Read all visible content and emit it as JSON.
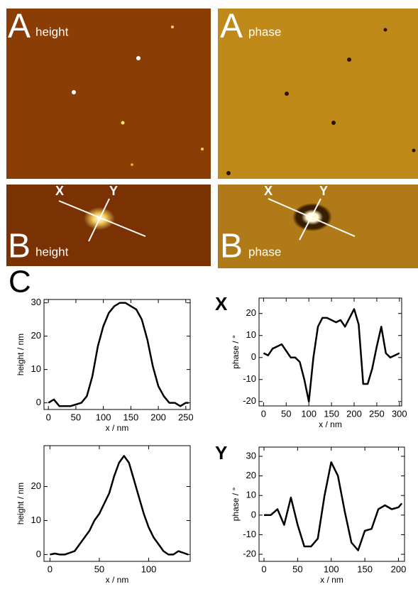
{
  "panels": {
    "a_letter": "A",
    "b_letter": "B",
    "c_letter": "C",
    "height": "height",
    "phase": "phase",
    "x_marker": "X",
    "y_marker": "Y"
  },
  "chart_data": [
    {
      "type": "line",
      "xlabel": "x / nm",
      "ylabel": "height / nm",
      "x": [
        0,
        10,
        20,
        30,
        40,
        50,
        60,
        70,
        80,
        90,
        100,
        110,
        120,
        130,
        140,
        150,
        160,
        170,
        180,
        190,
        200,
        210,
        220,
        230,
        240,
        250,
        255
      ],
      "series": [
        {
          "color": "#000000",
          "values": [
            0,
            1,
            -1,
            -1,
            -1,
            -0.5,
            0,
            2,
            8,
            17,
            23,
            27,
            29,
            30,
            30,
            29,
            28,
            25,
            19,
            11,
            5,
            2,
            0,
            0,
            -1,
            0,
            0
          ]
        }
      ],
      "xlim": [
        -8,
        258
      ],
      "ylim": [
        -2,
        31
      ],
      "xticks": [
        0,
        50,
        100,
        150,
        200,
        250
      ],
      "yticks": [
        0,
        10,
        20,
        30
      ]
    },
    {
      "type": "line",
      "xlabel": "x / nm",
      "ylabel": "phase / °",
      "title": "X",
      "x": [
        0,
        10,
        20,
        30,
        40,
        50,
        60,
        70,
        80,
        90,
        100,
        110,
        120,
        130,
        140,
        150,
        160,
        170,
        180,
        190,
        200,
        210,
        220,
        230,
        240,
        250,
        260,
        270,
        280,
        290,
        300
      ],
      "series": [
        {
          "color": "#000000",
          "values": [
            2,
            1,
            4,
            5,
            6,
            3,
            0,
            0,
            -2,
            -10,
            -20,
            0,
            14,
            18,
            18,
            17,
            16,
            17,
            14,
            18,
            22,
            15,
            -12,
            -12,
            -5,
            5,
            14,
            2,
            0,
            1,
            2
          ]
        }
      ],
      "xlim": [
        -10,
        305
      ],
      "ylim": [
        -22,
        27
      ],
      "xticks": [
        0,
        50,
        100,
        150,
        200,
        250,
        300
      ],
      "yticks": [
        -20,
        -10,
        0,
        10,
        20
      ]
    },
    {
      "type": "line",
      "xlabel": "x / nm",
      "ylabel": "height / nm",
      "x": [
        0,
        5,
        10,
        15,
        20,
        25,
        30,
        35,
        40,
        45,
        50,
        55,
        60,
        65,
        70,
        75,
        80,
        85,
        90,
        95,
        100,
        105,
        110,
        115,
        120,
        125,
        130,
        135,
        140
      ],
      "series": [
        {
          "color": "#000000",
          "values": [
            0,
            0.3,
            0,
            0,
            0.5,
            1,
            3,
            5,
            7,
            10,
            12,
            15,
            18,
            23,
            27,
            29,
            27,
            22,
            17,
            12,
            8,
            5,
            3,
            1,
            0,
            0,
            1,
            0.5,
            0
          ]
        }
      ],
      "xlim": [
        -6,
        142
      ],
      "ylim": [
        -2,
        32
      ],
      "xticks": [
        0,
        50,
        100
      ],
      "yticks": [
        0,
        10,
        20
      ]
    },
    {
      "type": "line",
      "xlabel": "x / nm",
      "ylabel": "phase / °",
      "title": "Y",
      "x": [
        0,
        10,
        20,
        30,
        40,
        50,
        60,
        70,
        80,
        90,
        100,
        110,
        120,
        130,
        140,
        150,
        160,
        170,
        180,
        190,
        200,
        205
      ],
      "series": [
        {
          "color": "#000000",
          "values": [
            0,
            0,
            3,
            -5,
            9,
            -5,
            -16,
            -16,
            -12,
            10,
            27,
            20,
            2,
            -14,
            -18,
            -8,
            -7,
            3,
            5,
            3,
            4,
            6
          ]
        }
      ],
      "xlim": [
        -7.4,
        209
      ],
      "ylim": [
        -23.6,
        34.7
      ],
      "xticks": [
        0,
        50,
        100,
        150,
        200
      ],
      "yticks": [
        -20,
        -10,
        0,
        10,
        20,
        30
      ]
    }
  ]
}
